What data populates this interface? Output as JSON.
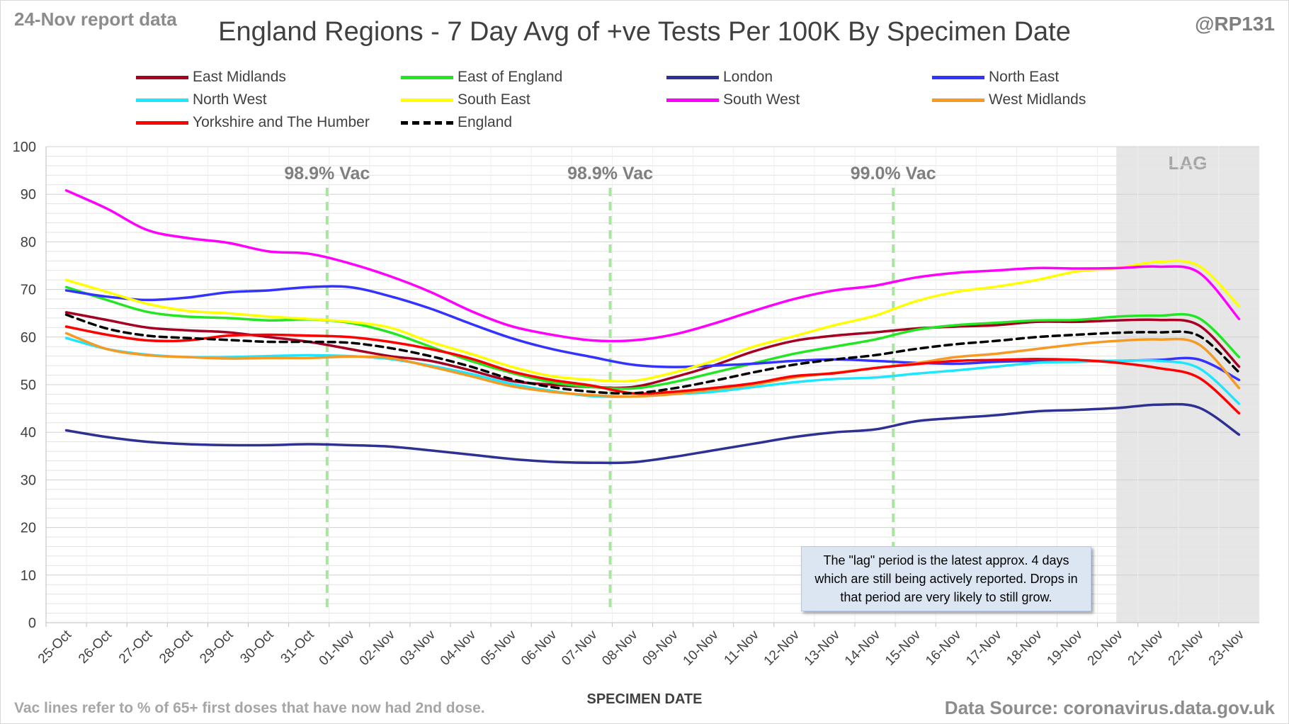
{
  "header": {
    "report_date": "24-Nov report data",
    "handle": "@RP131",
    "title": "England Regions - 7 Day Avg of +ve Tests Per 100K By Specimen Date"
  },
  "footer": {
    "footnote": "Vac lines refer to % of 65+ first doses that have now had 2nd dose.",
    "source": "Data Source: coronavirus.data.gov.uk"
  },
  "lag_note": "The \"lag\" period is the latest approx. 4 days which are still being actively reported.  Drops in that period are very likely to still grow.",
  "chart_data": {
    "type": "line",
    "title": "England Regions - 7 Day Avg of +ve Tests Per 100K By Specimen Date",
    "xlabel": "SPECIMEN DATE",
    "ylabel": "",
    "ylim": [
      0,
      100
    ],
    "yticks": [
      0,
      10,
      20,
      30,
      40,
      50,
      60,
      70,
      80,
      90,
      100
    ],
    "grid": true,
    "legend_position": "top",
    "categories": [
      "25-Oct",
      "26-Oct",
      "27-Oct",
      "28-Oct",
      "29-Oct",
      "30-Oct",
      "31-Oct",
      "01-Nov",
      "02-Nov",
      "03-Nov",
      "04-Nov",
      "05-Nov",
      "06-Nov",
      "07-Nov",
      "08-Nov",
      "09-Nov",
      "10-Nov",
      "11-Nov",
      "12-Nov",
      "13-Nov",
      "14-Nov",
      "15-Nov",
      "16-Nov",
      "17-Nov",
      "18-Nov",
      "19-Nov",
      "20-Nov",
      "21-Nov",
      "22-Nov",
      "23-Nov"
    ],
    "series": [
      {
        "name": "East Midlands",
        "color": "#a50021",
        "dash": false,
        "values": [
          65.2,
          63.6,
          62.0,
          61.4,
          61.0,
          60.0,
          59.0,
          57.5,
          56.0,
          55.0,
          53.0,
          50.8,
          50.0,
          49.5,
          49.5,
          51.5,
          54.0,
          57.0,
          59.2,
          60.3,
          61.0,
          61.8,
          62.2,
          62.5,
          63.2,
          63.2,
          63.5,
          63.6,
          62.5,
          53.8
        ]
      },
      {
        "name": "East of England",
        "color": "#22e622",
        "dash": false,
        "values": [
          70.5,
          67.8,
          65.3,
          64.3,
          64.0,
          63.5,
          63.7,
          63.0,
          61.0,
          58.0,
          55.0,
          52.5,
          50.5,
          49.5,
          49.2,
          50.5,
          52.5,
          54.5,
          56.5,
          58.0,
          59.5,
          61.5,
          62.5,
          63.0,
          63.5,
          63.6,
          64.3,
          64.5,
          64.0,
          55.8
        ]
      },
      {
        "name": "London",
        "color": "#2e3192",
        "dash": false,
        "values": [
          40.4,
          39.0,
          38.0,
          37.5,
          37.3,
          37.3,
          37.5,
          37.3,
          37.0,
          36.2,
          35.3,
          34.4,
          33.8,
          33.6,
          33.7,
          34.8,
          36.2,
          37.6,
          39.0,
          40.0,
          40.6,
          42.3,
          43.0,
          43.6,
          44.4,
          44.7,
          45.1,
          45.8,
          45.2,
          39.5
        ]
      },
      {
        "name": "North East",
        "color": "#3333ff",
        "dash": false,
        "values": [
          69.8,
          68.5,
          67.8,
          68.3,
          69.4,
          69.8,
          70.5,
          70.5,
          68.6,
          66.0,
          62.8,
          59.8,
          57.5,
          55.8,
          54.2,
          53.7,
          54.0,
          54.4,
          55.0,
          55.3,
          55.0,
          54.6,
          54.4,
          54.8,
          55.0,
          55.0,
          55.0,
          55.2,
          55.3,
          51.0
        ]
      },
      {
        "name": "North West",
        "color": "#1ee6ff",
        "dash": false,
        "values": [
          59.8,
          57.5,
          56.3,
          55.8,
          55.8,
          56.0,
          56.2,
          56.0,
          55.4,
          54.0,
          52.3,
          50.2,
          48.7,
          47.6,
          47.5,
          48.0,
          48.5,
          49.5,
          50.5,
          51.2,
          51.5,
          52.3,
          53.0,
          53.8,
          54.6,
          54.8,
          55.0,
          55.0,
          53.5,
          46.0
        ]
      },
      {
        "name": "South East",
        "color": "#ffff00",
        "dash": false,
        "values": [
          72.0,
          69.5,
          67.0,
          65.5,
          65.0,
          64.3,
          63.8,
          63.2,
          62.0,
          59.0,
          56.5,
          53.8,
          51.8,
          51.0,
          50.8,
          52.5,
          55.0,
          58.0,
          60.2,
          62.5,
          64.5,
          67.5,
          69.5,
          70.6,
          72.0,
          73.8,
          74.5,
          75.8,
          75.0,
          66.5
        ]
      },
      {
        "name": "South West",
        "color": "#ff00ff",
        "dash": false,
        "values": [
          90.8,
          87.0,
          82.5,
          80.8,
          79.8,
          78.0,
          77.5,
          75.5,
          72.8,
          69.5,
          65.5,
          62.3,
          60.5,
          59.3,
          59.3,
          60.5,
          62.8,
          65.5,
          68.0,
          69.8,
          70.8,
          72.5,
          73.5,
          74.0,
          74.5,
          74.4,
          74.5,
          74.8,
          73.6,
          63.8
        ]
      },
      {
        "name": "West Midlands",
        "color": "#f59a23",
        "dash": false,
        "values": [
          60.8,
          57.5,
          56.2,
          55.8,
          55.5,
          55.6,
          55.6,
          55.9,
          55.6,
          53.8,
          51.8,
          49.7,
          48.5,
          47.8,
          47.5,
          48.0,
          49.0,
          50.0,
          51.5,
          52.5,
          53.5,
          54.5,
          55.8,
          56.5,
          57.5,
          58.5,
          59.2,
          59.5,
          58.5,
          49.3
        ]
      },
      {
        "name": "Yorkshire and The Humber",
        "color": "#ff0000",
        "dash": false,
        "values": [
          62.2,
          60.5,
          59.3,
          59.3,
          60.3,
          60.5,
          60.3,
          60.0,
          59.0,
          57.5,
          55.5,
          52.8,
          51.0,
          49.8,
          48.2,
          48.5,
          49.3,
          50.3,
          51.8,
          52.4,
          53.5,
          54.3,
          55.0,
          55.2,
          55.4,
          55.2,
          54.6,
          53.5,
          51.5,
          44.0
        ]
      },
      {
        "name": "England",
        "color": "#000000",
        "dash": true,
        "values": [
          64.7,
          61.8,
          60.3,
          59.8,
          59.4,
          59.0,
          59.0,
          58.8,
          57.7,
          56.0,
          53.8,
          51.2,
          49.5,
          48.5,
          48.2,
          49.2,
          50.8,
          52.6,
          54.2,
          55.3,
          56.2,
          57.5,
          58.5,
          59.2,
          60.0,
          60.5,
          60.9,
          61.0,
          60.3,
          52.6
        ]
      }
    ],
    "annotations": [
      {
        "label": "98.9% Vac",
        "x": "31-Oct",
        "offset": 0.45
      },
      {
        "label": "98.9% Vac",
        "x": "07-Nov",
        "offset": 0.45
      },
      {
        "label": "99.0% Vac",
        "x": "14-Nov",
        "offset": 0.45
      }
    ],
    "shaded_region": {
      "label": "LAG",
      "from": "20-Nov",
      "to": "23-Nov"
    },
    "colors": {
      "vac_line": "#a9e5a0",
      "lag_fill": "#e6e6e6",
      "grid": "#e3e3e3"
    }
  }
}
